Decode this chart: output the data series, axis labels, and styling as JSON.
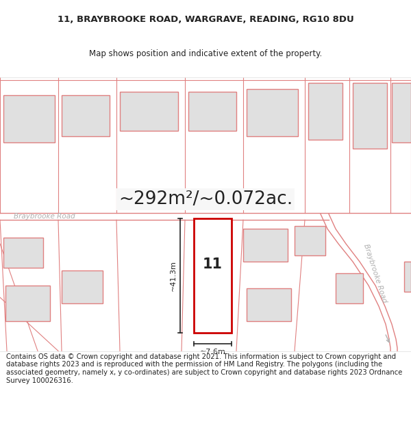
{
  "title_line1": "11, BRAYBROOKE ROAD, WARGRAVE, READING, RG10 8DU",
  "title_line2": "Map shows position and indicative extent of the property.",
  "area_text": "~292m²/~0.072ac.",
  "road_label_h": "Braybrooke Road",
  "road_label_v": "Braybrooke Road",
  "plot_number": "11",
  "dim_height": "~41.3m",
  "dim_width": "~7.6m",
  "footer_text": "Contains OS data © Crown copyright and database right 2021. This information is subject to Crown copyright and database rights 2023 and is reproduced with the permission of HM Land Registry. The polygons (including the associated geometry, namely x, y co-ordinates) are subject to Crown copyright and database rights 2023 Ordnance Survey 100026316.",
  "bg_color": "#ffffff",
  "map_bg": "#f7f7f7",
  "building_fill": "#e0e0e0",
  "building_edge": "#e08080",
  "road_color": "#e08080",
  "highlight_fill": "#ffffff",
  "highlight_edge": "#cc0000",
  "dim_line_color": "#222222",
  "text_color": "#222222",
  "road_text_color": "#b0b0b0",
  "title_fontsize": 9.5,
  "subtitle_fontsize": 8.5,
  "area_fontsize": 19,
  "footer_fontsize": 7.2
}
